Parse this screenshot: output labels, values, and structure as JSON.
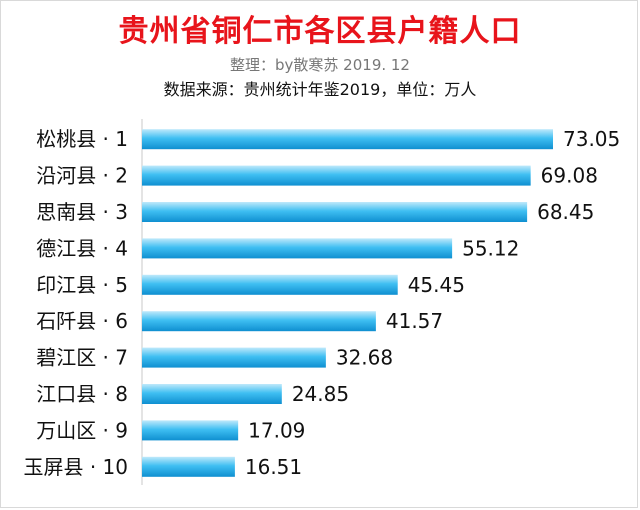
{
  "header": {
    "title": "贵州省铜仁市各区县户籍人口",
    "credit": "整理：by散寒苏 2019. 12",
    "source": "数据来源：贵州统计年鉴2019，单位：万人"
  },
  "colors": {
    "title": "#e8141b",
    "bar_light": "#bfe9fb",
    "bar_mid": "#3fbff2",
    "bar_dark": "#0f8fd0",
    "text": "#111111",
    "axis": "#c8c8c8"
  },
  "chart_data": {
    "type": "bar",
    "orientation": "horizontal",
    "title": "贵州省铜仁市各区县户籍人口",
    "categories": [
      "松桃县 · 1",
      "沿河县 · 2",
      "思南县 · 3",
      "德江县 · 4",
      "印江县 · 5",
      "石阡县 · 6",
      "碧江区 · 7",
      "江口县 · 8",
      "万山区 · 9",
      "玉屏县 · 10"
    ],
    "values": [
      73.05,
      69.08,
      68.45,
      55.12,
      45.45,
      41.57,
      32.68,
      24.85,
      17.09,
      16.51
    ],
    "value_labels": [
      "73.05",
      "69.08",
      "68.45",
      "55.12",
      "45.45",
      "41.57",
      "32.68",
      "24.85",
      "17.09",
      "16.51"
    ],
    "xlim": [
      0,
      73.05
    ],
    "grid": false,
    "legend": "none"
  }
}
